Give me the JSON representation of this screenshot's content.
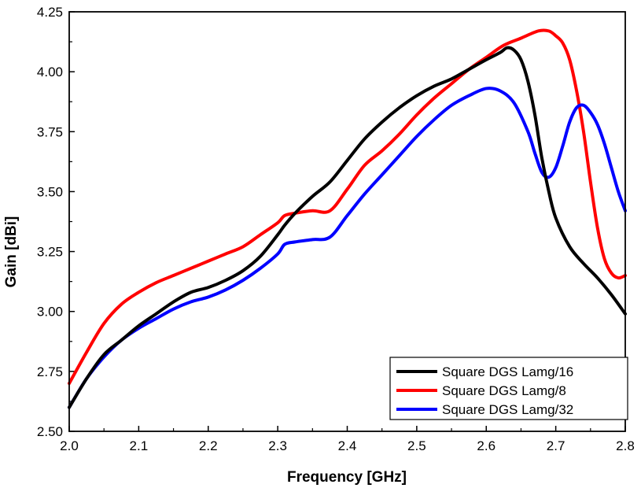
{
  "chart_data": {
    "type": "line",
    "title": "",
    "xlabel": "Frequency [GHz]",
    "ylabel": "Gain [dBi]",
    "xlim": [
      2.0,
      2.8
    ],
    "ylim": [
      2.5,
      4.25
    ],
    "x_ticks": [
      2.0,
      2.1,
      2.2,
      2.3,
      2.4,
      2.5,
      2.6,
      2.7,
      2.8
    ],
    "x_tick_labels": [
      "2.0",
      "2.1",
      "2.2",
      "2.3",
      "2.4",
      "2.5",
      "2.6",
      "2.7",
      "2.8"
    ],
    "y_ticks": [
      2.5,
      2.75,
      3.0,
      3.25,
      3.5,
      3.75,
      4.0,
      4.25
    ],
    "y_tick_labels": [
      "2.50",
      "2.75",
      "3.00",
      "3.25",
      "3.50",
      "3.75",
      "4.00",
      "4.25"
    ],
    "grid": false,
    "legend_position": "bottom-right",
    "series": [
      {
        "name": "Square DGS Lamg/16",
        "color": "#000000",
        "x": [
          2.0,
          2.025,
          2.05,
          2.075,
          2.1,
          2.125,
          2.15,
          2.175,
          2.2,
          2.225,
          2.25,
          2.275,
          2.3,
          2.31,
          2.325,
          2.35,
          2.375,
          2.4,
          2.425,
          2.45,
          2.475,
          2.5,
          2.525,
          2.55,
          2.575,
          2.6,
          2.62,
          2.63,
          2.64,
          2.65,
          2.66,
          2.67,
          2.68,
          2.69,
          2.7,
          2.72,
          2.74,
          2.76,
          2.78,
          2.8
        ],
        "y": [
          2.6,
          2.72,
          2.82,
          2.88,
          2.94,
          2.99,
          3.04,
          3.08,
          3.1,
          3.13,
          3.17,
          3.23,
          3.32,
          3.36,
          3.41,
          3.48,
          3.54,
          3.63,
          3.72,
          3.79,
          3.85,
          3.9,
          3.94,
          3.97,
          4.01,
          4.05,
          4.08,
          4.1,
          4.09,
          4.05,
          3.96,
          3.82,
          3.64,
          3.5,
          3.39,
          3.27,
          3.2,
          3.14,
          3.07,
          2.99
        ]
      },
      {
        "name": "Square DGS Lamg/8",
        "color": "#ff0000",
        "x": [
          2.0,
          2.025,
          2.05,
          2.075,
          2.1,
          2.125,
          2.15,
          2.175,
          2.2,
          2.225,
          2.25,
          2.275,
          2.3,
          2.31,
          2.325,
          2.35,
          2.375,
          2.4,
          2.425,
          2.45,
          2.475,
          2.5,
          2.525,
          2.55,
          2.575,
          2.6,
          2.625,
          2.65,
          2.675,
          2.69,
          2.7,
          2.71,
          2.72,
          2.73,
          2.74,
          2.75,
          2.76,
          2.77,
          2.78,
          2.79,
          2.8
        ],
        "y": [
          2.7,
          2.83,
          2.95,
          3.03,
          3.08,
          3.12,
          3.15,
          3.18,
          3.21,
          3.24,
          3.27,
          3.32,
          3.37,
          3.4,
          3.41,
          3.42,
          3.42,
          3.51,
          3.61,
          3.67,
          3.74,
          3.82,
          3.89,
          3.95,
          4.01,
          4.06,
          4.11,
          4.14,
          4.17,
          4.17,
          4.15,
          4.12,
          4.05,
          3.92,
          3.75,
          3.54,
          3.35,
          3.22,
          3.16,
          3.14,
          3.15
        ]
      },
      {
        "name": "Square DGS Lamg/32",
        "color": "#0000ff",
        "x": [
          2.0,
          2.025,
          2.05,
          2.075,
          2.1,
          2.125,
          2.15,
          2.175,
          2.2,
          2.225,
          2.25,
          2.275,
          2.3,
          2.31,
          2.325,
          2.35,
          2.375,
          2.4,
          2.425,
          2.45,
          2.475,
          2.5,
          2.525,
          2.55,
          2.575,
          2.6,
          2.62,
          2.64,
          2.66,
          2.67,
          2.68,
          2.69,
          2.7,
          2.71,
          2.72,
          2.73,
          2.74,
          2.75,
          2.76,
          2.77,
          2.78,
          2.79,
          2.8
        ],
        "y": [
          2.6,
          2.72,
          2.81,
          2.88,
          2.93,
          2.97,
          3.01,
          3.04,
          3.06,
          3.09,
          3.13,
          3.18,
          3.24,
          3.28,
          3.29,
          3.3,
          3.31,
          3.4,
          3.49,
          3.57,
          3.65,
          3.73,
          3.8,
          3.86,
          3.9,
          3.93,
          3.92,
          3.87,
          3.75,
          3.66,
          3.58,
          3.56,
          3.6,
          3.69,
          3.79,
          3.85,
          3.86,
          3.83,
          3.78,
          3.7,
          3.6,
          3.5,
          3.42
        ]
      }
    ]
  }
}
